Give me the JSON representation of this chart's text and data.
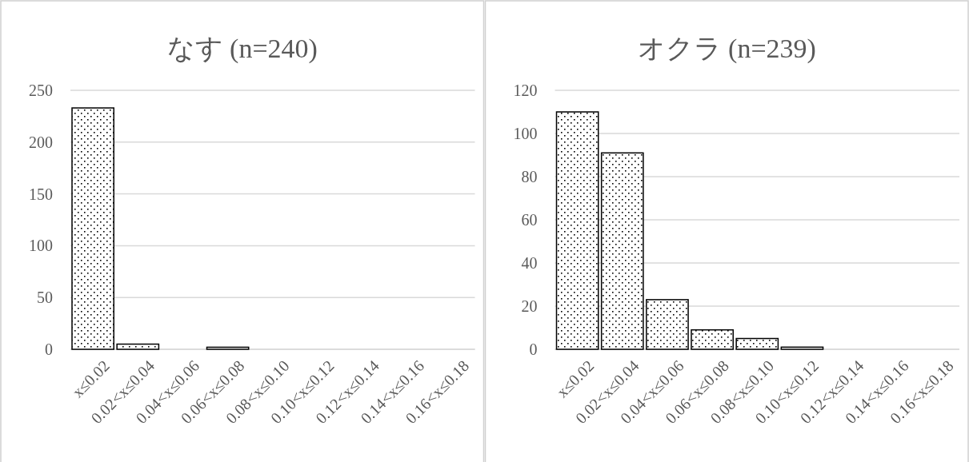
{
  "chart_data": [
    {
      "type": "bar",
      "title": "なす (n=240)",
      "categories": [
        "x≤0.02",
        "0.02<x≤0.04",
        "0.04<x≤0.06",
        "0.06<x≤0.08",
        "0.08<x≤0.10",
        "0.10<x≤0.12",
        "0.12<x≤0.14",
        "0.14<x≤0.16",
        "0.16<x≤0.18"
      ],
      "values": [
        233,
        5,
        0,
        2,
        0,
        0,
        0,
        0,
        0
      ],
      "color": "#000000",
      "ylim": [
        0,
        250
      ],
      "yticks": [
        0,
        50,
        100,
        150,
        200,
        250
      ],
      "grid": "y"
    },
    {
      "type": "bar",
      "title": "オクラ (n=239)",
      "categories": [
        "x≤0.02",
        "0.02<x≤0.04",
        "0.04<x≤0.06",
        "0.06<x≤0.08",
        "0.08<x≤0.10",
        "0.10<x≤0.12",
        "0.12<x≤0.14",
        "0.14<x≤0.16",
        "0.16<x≤0.18"
      ],
      "values": [
        110,
        91,
        23,
        9,
        5,
        1,
        0,
        0,
        0
      ],
      "color": "#000000",
      "ylim": [
        0,
        120
      ],
      "yticks": [
        0,
        20,
        40,
        60,
        80,
        100,
        120
      ],
      "grid": "y"
    }
  ]
}
